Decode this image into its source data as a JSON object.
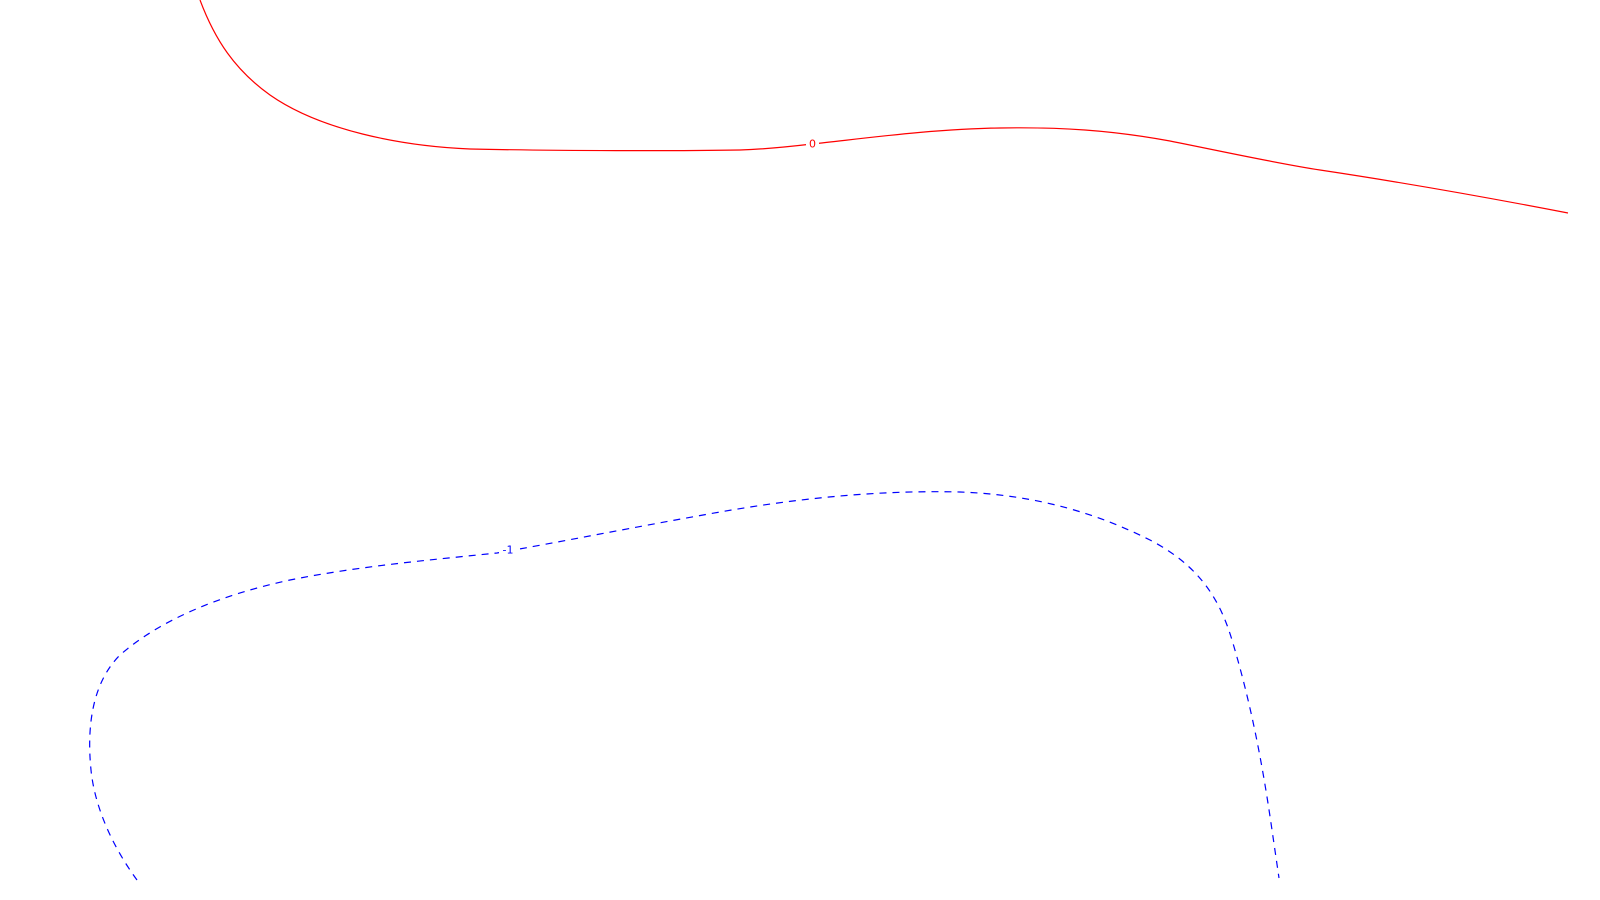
{
  "contours": [
    {
      "name": "contour-level-0",
      "label": "0",
      "color": "#ff0000",
      "style": "solid"
    },
    {
      "name": "contour-level-neg-1",
      "label": "-1",
      "color": "#0000ff",
      "style": "dashed"
    }
  ]
}
